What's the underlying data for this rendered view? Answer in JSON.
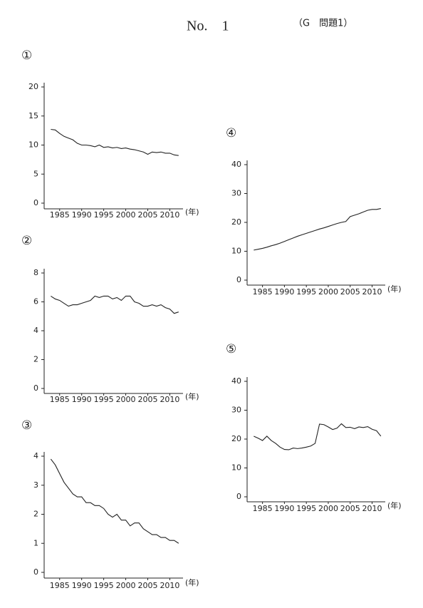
{
  "header": {
    "number": "No.　1",
    "problem": "（G　問題1）"
  },
  "chart_data": [
    {
      "type": "line",
      "title": "①",
      "x_label": "(年)",
      "color": "#222222",
      "x": [
        1983,
        1984,
        1985,
        1986,
        1987,
        1988,
        1989,
        1990,
        1991,
        1992,
        1993,
        1994,
        1995,
        1996,
        1997,
        1998,
        1999,
        2000,
        2001,
        2002,
        2003,
        2004,
        2005,
        2006,
        2007,
        2008,
        2009,
        2010,
        2011,
        2012
      ],
      "values": [
        12.7,
        12.6,
        12.0,
        11.5,
        11.2,
        10.9,
        10.3,
        10.0,
        10.0,
        9.9,
        9.7,
        10.0,
        9.6,
        9.7,
        9.5,
        9.6,
        9.4,
        9.5,
        9.3,
        9.2,
        9.0,
        8.8,
        8.4,
        8.8,
        8.7,
        8.8,
        8.6,
        8.6,
        8.3,
        8.2
      ],
      "xlim": [
        1981,
        2013
      ],
      "ylim": [
        0,
        20
      ],
      "xticks": [
        1985,
        1990,
        1995,
        2000,
        2005,
        2010
      ],
      "yticks": [
        0,
        5,
        10,
        15,
        20
      ]
    },
    {
      "type": "line",
      "title": "②",
      "x_label": "(年)",
      "color": "#222222",
      "x": [
        1983,
        1984,
        1985,
        1986,
        1987,
        1988,
        1989,
        1990,
        1991,
        1992,
        1993,
        1994,
        1995,
        1996,
        1997,
        1998,
        1999,
        2000,
        2001,
        2002,
        2003,
        2004,
        2005,
        2006,
        2007,
        2008,
        2009,
        2010,
        2011,
        2012
      ],
      "values": [
        6.4,
        6.2,
        6.1,
        5.9,
        5.7,
        5.8,
        5.8,
        5.9,
        6.0,
        6.1,
        6.4,
        6.3,
        6.4,
        6.4,
        6.2,
        6.3,
        6.1,
        6.4,
        6.4,
        6.0,
        5.9,
        5.7,
        5.7,
        5.8,
        5.7,
        5.8,
        5.6,
        5.5,
        5.2,
        5.3
      ],
      "xlim": [
        1981,
        2013
      ],
      "ylim": [
        0,
        8
      ],
      "xticks": [
        1985,
        1990,
        1995,
        2000,
        2005,
        2010
      ],
      "yticks": [
        0,
        2,
        4,
        6,
        8
      ]
    },
    {
      "type": "line",
      "title": "③",
      "x_label": "(年)",
      "color": "#222222",
      "x": [
        1983,
        1984,
        1985,
        1986,
        1987,
        1988,
        1989,
        1990,
        1991,
        1992,
        1993,
        1994,
        1995,
        1996,
        1997,
        1998,
        1999,
        2000,
        2001,
        2002,
        2003,
        2004,
        2005,
        2006,
        2007,
        2008,
        2009,
        2010,
        2011,
        2012
      ],
      "values": [
        3.9,
        3.7,
        3.4,
        3.1,
        2.9,
        2.7,
        2.6,
        2.6,
        2.4,
        2.4,
        2.3,
        2.3,
        2.2,
        2.0,
        1.9,
        2.0,
        1.8,
        1.8,
        1.6,
        1.7,
        1.7,
        1.5,
        1.4,
        1.3,
        1.3,
        1.2,
        1.2,
        1.1,
        1.1,
        1.0
      ],
      "xlim": [
        1981,
        2013
      ],
      "ylim": [
        0,
        4
      ],
      "xticks": [
        1985,
        1990,
        1995,
        2000,
        2005,
        2010
      ],
      "yticks": [
        0,
        1,
        2,
        3,
        4
      ]
    },
    {
      "type": "line",
      "title": "④",
      "x_label": "(年)",
      "color": "#222222",
      "x": [
        1983,
        1984,
        1985,
        1986,
        1987,
        1988,
        1989,
        1990,
        1991,
        1992,
        1993,
        1994,
        1995,
        1996,
        1997,
        1998,
        1999,
        2000,
        2001,
        2002,
        2003,
        2004,
        2005,
        2006,
        2007,
        2008,
        2009,
        2010,
        2011,
        2012
      ],
      "values": [
        10.4,
        10.7,
        11.0,
        11.4,
        11.9,
        12.3,
        12.8,
        13.4,
        14.0,
        14.6,
        15.2,
        15.7,
        16.2,
        16.7,
        17.2,
        17.7,
        18.1,
        18.6,
        19.1,
        19.6,
        20.0,
        20.3,
        22.0,
        22.5,
        23.0,
        23.6,
        24.2,
        24.5,
        24.5,
        24.8
      ],
      "xlim": [
        1981,
        2013
      ],
      "ylim": [
        0,
        40
      ],
      "xticks": [
        1985,
        1990,
        1995,
        2000,
        2005,
        2010
      ],
      "yticks": [
        0,
        10,
        20,
        30,
        40
      ]
    },
    {
      "type": "line",
      "title": "⑤",
      "x_label": "(年)",
      "color": "#222222",
      "x": [
        1983,
        1984,
        1985,
        1986,
        1987,
        1988,
        1989,
        1990,
        1991,
        1992,
        1993,
        1994,
        1995,
        1996,
        1997,
        1998,
        1999,
        2000,
        2001,
        2002,
        2003,
        2004,
        2005,
        2006,
        2007,
        2008,
        2009,
        2010,
        2011,
        2012
      ],
      "values": [
        21.0,
        20.3,
        19.5,
        21.0,
        19.5,
        18.5,
        17.2,
        16.4,
        16.3,
        16.9,
        16.7,
        16.9,
        17.2,
        17.6,
        18.5,
        25.2,
        25.0,
        24.2,
        23.3,
        23.8,
        25.3,
        24.0,
        24.1,
        23.6,
        24.2,
        24.0,
        24.3,
        23.4,
        22.9,
        21.0
      ],
      "xlim": [
        1981,
        2013
      ],
      "ylim": [
        0,
        40
      ],
      "xticks": [
        1985,
        1990,
        1995,
        2000,
        2005,
        2010
      ],
      "yticks": [
        0,
        10,
        20,
        30,
        40
      ]
    }
  ]
}
